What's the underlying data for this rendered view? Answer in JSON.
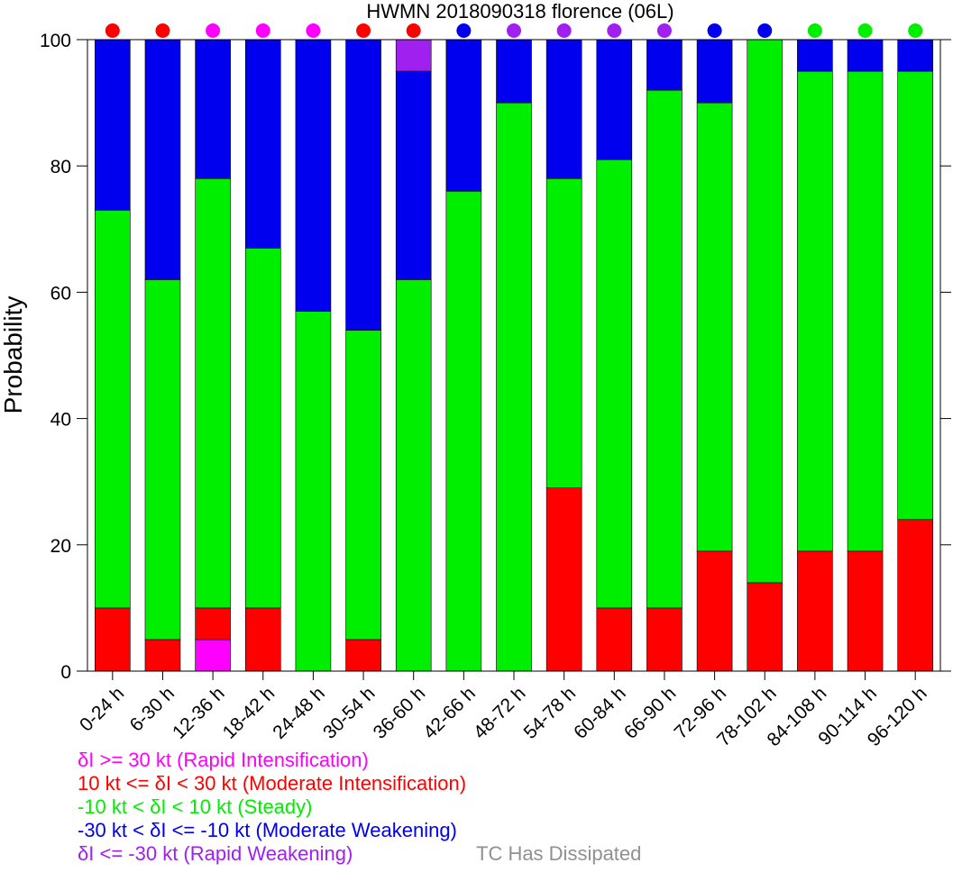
{
  "chart_data": {
    "type": "bar",
    "stacked": true,
    "title": "HWMN 2018090318 florence (06L)",
    "xlabel": "",
    "ylabel": "Probability",
    "ylim": [
      0,
      100
    ],
    "yticks": [
      0,
      20,
      40,
      60,
      80,
      100
    ],
    "grid": false,
    "categories": [
      "0-24 h",
      "6-30 h",
      "12-36 h",
      "18-42 h",
      "24-48 h",
      "30-54 h",
      "36-60 h",
      "42-66 h",
      "48-72 h",
      "54-78 h",
      "60-84 h",
      "66-90 h",
      "72-96 h",
      "78-102 h",
      "84-108 h",
      "90-114 h",
      "96-120 h"
    ],
    "series": [
      {
        "key": "ri",
        "color": "#ff00ff",
        "values": [
          0,
          0,
          5,
          0,
          0,
          0,
          0,
          0,
          0,
          0,
          0,
          0,
          0,
          0,
          0,
          0,
          0
        ]
      },
      {
        "key": "mi",
        "color": "#ff0000",
        "values": [
          10,
          5,
          5,
          10,
          0,
          5,
          0,
          0,
          0,
          29,
          10,
          10,
          19,
          14,
          19,
          19,
          24
        ]
      },
      {
        "key": "st",
        "color": "#00ee00",
        "values": [
          63,
          57,
          68,
          57,
          57,
          49,
          62,
          76,
          90,
          49,
          71,
          82,
          71,
          86,
          76,
          76,
          71
        ]
      },
      {
        "key": "mw",
        "color": "#0000ee",
        "values": [
          27,
          38,
          22,
          33,
          43,
          46,
          33,
          24,
          10,
          22,
          19,
          8,
          10,
          0,
          5,
          5,
          5
        ]
      },
      {
        "key": "rw",
        "color": "#a020f0",
        "values": [
          0,
          0,
          0,
          0,
          0,
          0,
          5,
          0,
          0,
          0,
          0,
          0,
          0,
          0,
          0,
          0,
          0
        ]
      }
    ],
    "top_markers": [
      "#ff0000",
      "#ff0000",
      "#ff00ff",
      "#ff00ff",
      "#ff00ff",
      "#ff0000",
      "#ff0000",
      "#0000ee",
      "#a020f0",
      "#a020f0",
      "#a020f0",
      "#a020f0",
      "#0000ee",
      "#0000ee",
      "#00ee00",
      "#00ee00",
      "#00ee00"
    ],
    "legend": [
      {
        "text": "δI >= 30 kt (Rapid Intensification)",
        "color": "#ff00ff"
      },
      {
        "text": "10 kt <= δI < 30 kt (Moderate Intensification)",
        "color": "#ff0000"
      },
      {
        "text": "-10 kt < δI < 10 kt (Steady)",
        "color": "#00ee00"
      },
      {
        "text": "-30 kt < δI <= -10 kt (Moderate Weakening)",
        "color": "#0000ee"
      },
      {
        "text": "δI <= -30 kt (Rapid Weakening)",
        "color": "#a020f0"
      }
    ],
    "dissipated_label": {
      "text": "TC Has Dissipated",
      "color": "#909090"
    }
  }
}
